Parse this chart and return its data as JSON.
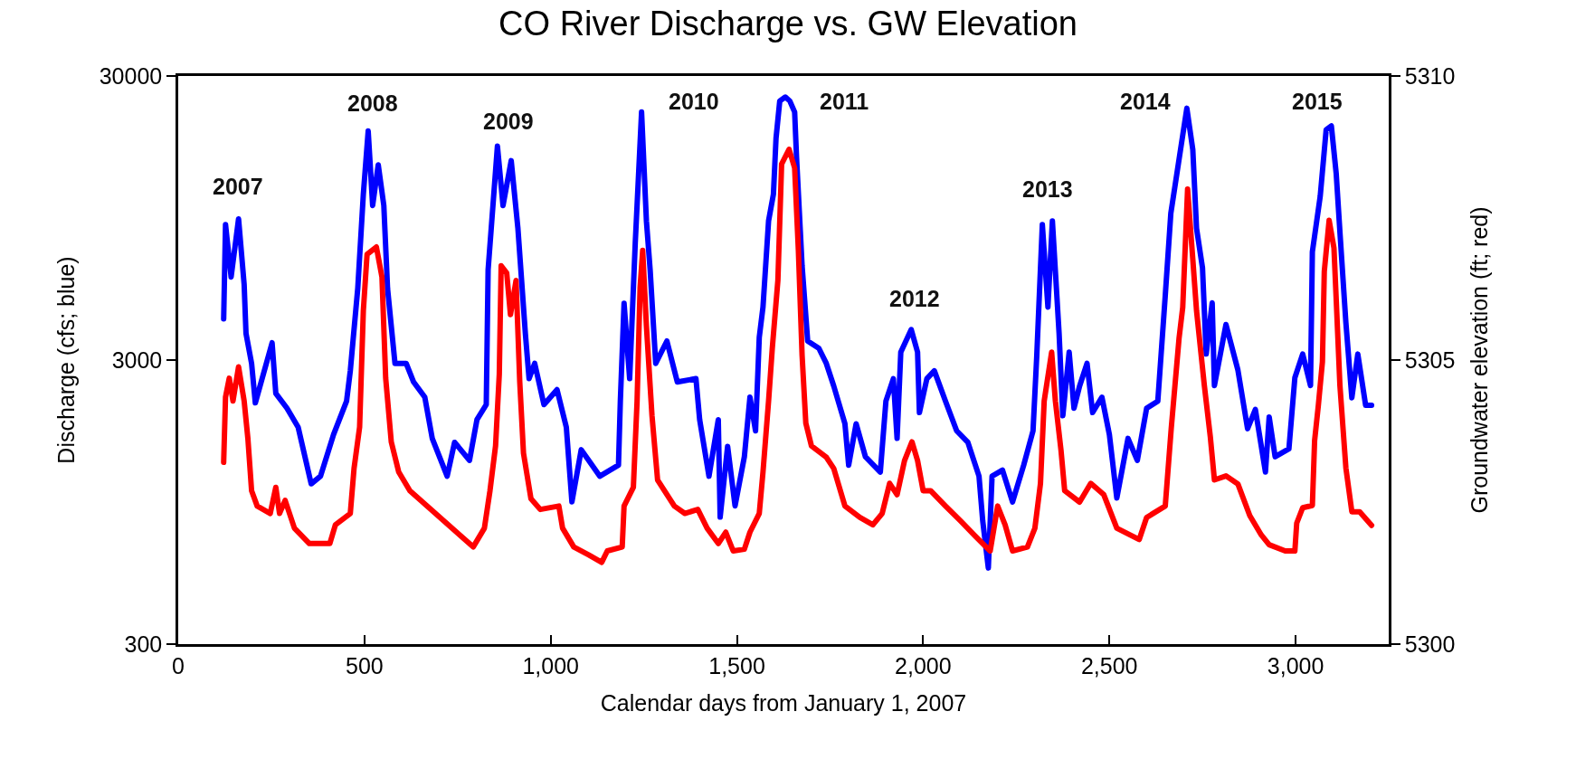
{
  "chart_data": {
    "type": "line",
    "title": "CO River Discharge vs. GW Elevation",
    "xlabel": "Calendar days from January 1, 2007",
    "ylabel": "Discharge (cfs; blue)",
    "y2label": "Groundwater elevation (ft; red)",
    "xlim": [
      0,
      3250
    ],
    "xticks": [
      0,
      {
        "value": 500,
        "label": "500"
      },
      {
        "value": 1000,
        "label": "1,000"
      },
      {
        "value": 1500,
        "label": "1,500"
      },
      {
        "value": 2000,
        "label": "2,000"
      },
      {
        "value": 2500,
        "label": "2,500"
      },
      {
        "value": 3000,
        "label": "3,000"
      }
    ],
    "ylim": [
      300,
      30000
    ],
    "yticks": [
      300,
      3000,
      30000
    ],
    "log": "y",
    "y2lim": [
      5300,
      5310
    ],
    "y2ticks": [
      5300,
      5305,
      5310
    ],
    "grid": false,
    "marker": "none",
    "line_style": "solid",
    "series": [
      {
        "color": "#0000ff",
        "x": [
          122,
          127,
          142,
          162,
          177,
          182,
          197,
          207,
          252,
          262,
          292,
          322,
          357,
          382,
          417,
          452,
          462,
          482,
          497,
          510,
          522,
          537,
          552,
          562,
          582,
          612,
          632,
          662,
          682,
          722,
          742,
          782,
          802,
          827,
          832,
          857,
          872,
          894,
          912,
          932,
          942,
          957,
          982,
          1017,
          1042,
          1057,
          1082,
          1132,
          1182,
          1187,
          1197,
          1212,
          1227,
          1244,
          1257,
          1267,
          1282,
          1312,
          1340,
          1390,
          1400,
          1425,
          1450,
          1455,
          1475,
          1495,
          1520,
          1535,
          1550,
          1560,
          1570,
          1585,
          1598,
          1605,
          1615,
          1630,
          1642,
          1655,
          1660,
          1675,
          1690,
          1720,
          1740,
          1760,
          1790,
          1800,
          1820,
          1845,
          1885,
          1900,
          1920,
          1930,
          1940,
          1968,
          1985,
          1990,
          2010,
          2030,
          2060,
          2090,
          2120,
          2150,
          2160,
          2175,
          2185,
          2213,
          2240,
          2270,
          2295,
          2305,
          2320,
          2335,
          2347,
          2365,
          2375,
          2392,
          2405,
          2420,
          2440,
          2455,
          2480,
          2500,
          2520,
          2550,
          2575,
          2600,
          2630,
          2650,
          2665,
          2708,
          2724,
          2734,
          2750,
          2760,
          2776,
          2782,
          2813,
          2845,
          2871,
          2892,
          2919,
          2929,
          2945,
          2982,
          2998,
          3019,
          3040,
          3045,
          3066,
          3082,
          3096,
          3109,
          3119,
          3135,
          3151,
          3167,
          3188,
          3204
        ],
        "values": [
          4190,
          9000,
          5880,
          9420,
          5530,
          3720,
          2920,
          2120,
          3450,
          2290,
          2030,
          1740,
          1100,
          1170,
          1640,
          2150,
          2750,
          5360,
          11500,
          19200,
          10500,
          14600,
          10500,
          5360,
          2920,
          2920,
          2510,
          2220,
          1590,
          1170,
          1540,
          1330,
          1850,
          2090,
          6240,
          17000,
          10500,
          15100,
          8730,
          3720,
          2580,
          2920,
          2090,
          2360,
          1740,
          950,
          1450,
          1170,
          1280,
          2150,
          4750,
          2580,
          7730,
          22400,
          9270,
          6240,
          2920,
          3500,
          2510,
          2580,
          1850,
          1170,
          1850,
          840,
          1490,
          920,
          1370,
          2220,
          1690,
          3610,
          4610,
          9270,
          11500,
          18100,
          24500,
          25300,
          24500,
          22400,
          15600,
          6440,
          3500,
          3300,
          2920,
          2430,
          1790,
          1280,
          1790,
          1370,
          1210,
          2150,
          2580,
          1590,
          3200,
          3840,
          3200,
          1960,
          2580,
          2750,
          2150,
          1690,
          1540,
          1170,
          814,
          556,
          1170,
          1230,
          950,
          1280,
          1690,
          3100,
          9000,
          4610,
          9270,
          3720,
          1910,
          3200,
          2030,
          2430,
          2920,
          1960,
          2220,
          1640,
          980,
          1590,
          1330,
          2030,
          2150,
          5050,
          9860,
          23100,
          16500,
          8730,
          6340,
          3150,
          4770,
          2440,
          4000,
          2770,
          1720,
          2010,
          1210,
          1890,
          1370,
          1460,
          2600,
          3150,
          2440,
          7210,
          11300,
          19400,
          20000,
          13600,
          8460,
          4060,
          2210,
          3150,
          2080,
          2080
        ]
      },
      {
        "color": "#ff0000",
        "axis": "y2",
        "x": [
          122,
          127,
          137,
          147,
          162,
          177,
          187,
          197,
          212,
          247,
          262,
          272,
          287,
          312,
          352,
          407,
          422,
          462,
          472,
          487,
          497,
          507,
          532,
          547,
          557,
          572,
          592,
          622,
          792,
          822,
          837,
          852,
          862,
          867,
          882,
          892,
          907,
          917,
          927,
          947,
          972,
          1022,
          1032,
          1062,
          1102,
          1137,
          1152,
          1192,
          1197,
          1222,
          1232,
          1240,
          1247,
          1257,
          1272,
          1287,
          1332,
          1360,
          1395,
          1420,
          1450,
          1470,
          1490,
          1520,
          1535,
          1560,
          1570,
          1585,
          1595,
          1610,
          1620,
          1640,
          1655,
          1665,
          1675,
          1685,
          1700,
          1740,
          1760,
          1790,
          1830,
          1865,
          1890,
          1910,
          1930,
          1950,
          1970,
          1985,
          2000,
          2020,
          2060,
          2100,
          2140,
          2180,
          2200,
          2220,
          2240,
          2280,
          2300,
          2315,
          2325,
          2345,
          2355,
          2370,
          2380,
          2420,
          2450,
          2485,
          2520,
          2580,
          2600,
          2650,
          2666,
          2687,
          2697,
          2710,
          2724,
          2734,
          2755,
          2771,
          2782,
          2813,
          2845,
          2877,
          2908,
          2929,
          2972,
          2998,
          3003,
          3019,
          3045,
          3051,
          3061,
          3072,
          3077,
          3090,
          3103,
          3109,
          3119,
          3135,
          3151,
          3172,
          3204
        ],
        "values": [
          5303.2,
          5304.35,
          5304.68,
          5304.28,
          5304.88,
          5304.28,
          5303.62,
          5302.7,
          5302.43,
          5302.3,
          5302.76,
          5302.3,
          5302.53,
          5302.04,
          5301.77,
          5301.77,
          5302.1,
          5302.3,
          5303.09,
          5303.82,
          5305.87,
          5306.86,
          5306.99,
          5306.46,
          5304.68,
          5303.56,
          5303.03,
          5302.7,
          5301.71,
          5302.04,
          5302.7,
          5303.49,
          5304.75,
          5306.66,
          5306.53,
          5305.8,
          5306.4,
          5304.61,
          5303.36,
          5302.56,
          5302.37,
          5302.43,
          5302.04,
          5301.71,
          5301.57,
          5301.44,
          5301.64,
          5301.71,
          5302.43,
          5302.76,
          5304.28,
          5306.27,
          5306.93,
          5305.6,
          5304.02,
          5302.89,
          5302.43,
          5302.3,
          5302.37,
          5302.04,
          5301.77,
          5301.97,
          5301.64,
          5301.67,
          5301.97,
          5302.3,
          5303.03,
          5304.28,
          5305.21,
          5306.4,
          5308.45,
          5308.71,
          5308.38,
          5306.93,
          5305.08,
          5303.89,
          5303.49,
          5303.29,
          5303.09,
          5302.43,
          5302.23,
          5302.1,
          5302.3,
          5302.83,
          5302.63,
          5303.23,
          5303.56,
          5303.23,
          5302.7,
          5302.7,
          5302.43,
          5302.17,
          5301.9,
          5301.64,
          5302.43,
          5302.1,
          5301.64,
          5301.71,
          5302.04,
          5302.83,
          5304.28,
          5305.14,
          5304.28,
          5303.42,
          5302.7,
          5302.5,
          5302.83,
          5302.63,
          5302.04,
          5301.84,
          5302.23,
          5302.43,
          5303.79,
          5305.38,
          5305.93,
          5308.01,
          5306.77,
          5305.87,
          5304.55,
          5303.65,
          5302.89,
          5302.96,
          5302.82,
          5302.26,
          5301.92,
          5301.75,
          5301.64,
          5301.64,
          5302.13,
          5302.4,
          5302.44,
          5303.58,
          5304.2,
          5304.97,
          5306.56,
          5307.46,
          5306.97,
          5306.07,
          5304.55,
          5303.1,
          5302.33,
          5302.33,
          5302.09
        ]
      }
    ],
    "annotations": [
      "2007",
      "2008",
      "2009",
      "2010",
      "2011",
      "2012",
      "2013",
      "2014",
      "2015"
    ]
  }
}
